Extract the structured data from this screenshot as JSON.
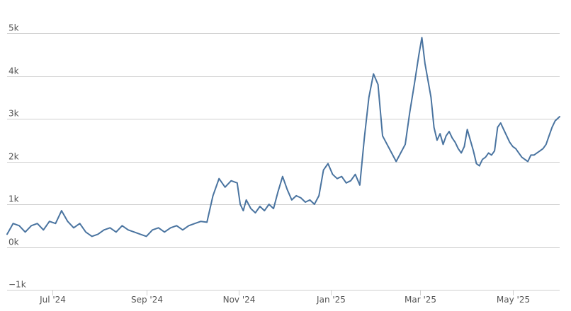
{
  "chart_data": {
    "type": "line",
    "title": "",
    "xlabel": "",
    "ylabel": "",
    "ylim": [
      -1000,
      5000
    ],
    "y_ticks": [
      {
        "value": 5000,
        "label": "5k"
      },
      {
        "value": 4000,
        "label": "4k"
      },
      {
        "value": 3000,
        "label": "3k"
      },
      {
        "value": 2000,
        "label": "2k"
      },
      {
        "value": 1000,
        "label": "1k"
      },
      {
        "value": 0,
        "label": "0k"
      },
      {
        "value": -1000,
        "label": "−1k"
      }
    ],
    "x_range": [
      "2024-06-01",
      "2025-06-01"
    ],
    "x_ticks": [
      {
        "date": "2024-07-01",
        "label": "Jul '24"
      },
      {
        "date": "2024-09-01",
        "label": "Sep '24"
      },
      {
        "date": "2024-11-01",
        "label": "Nov '24"
      },
      {
        "date": "2025-01-01",
        "label": "Jan '25"
      },
      {
        "date": "2025-03-01",
        "label": "Mar '25"
      },
      {
        "date": "2025-05-01",
        "label": "May '25"
      }
    ],
    "grid": true,
    "legend": "none",
    "series_color": "#4a74a0",
    "series": [
      {
        "x": [
          "2024-06-01",
          "2024-06-05",
          "2024-06-09",
          "2024-06-13",
          "2024-06-17",
          "2024-06-21",
          "2024-06-25",
          "2024-06-29",
          "2024-07-03",
          "2024-07-07",
          "2024-07-11",
          "2024-07-15",
          "2024-07-19",
          "2024-07-23",
          "2024-07-27",
          "2024-07-31",
          "2024-08-04",
          "2024-08-08",
          "2024-08-12",
          "2024-08-16",
          "2024-08-20",
          "2024-08-24",
          "2024-08-28",
          "2024-09-01",
          "2024-09-05",
          "2024-09-09",
          "2024-09-13",
          "2024-09-17",
          "2024-09-21",
          "2024-09-25",
          "2024-09-29",
          "2024-10-03",
          "2024-10-07",
          "2024-10-11",
          "2024-10-15",
          "2024-10-19",
          "2024-10-23",
          "2024-10-27",
          "2024-10-31",
          "2024-11-02",
          "2024-11-04",
          "2024-11-06",
          "2024-11-09",
          "2024-11-12",
          "2024-11-15",
          "2024-11-18",
          "2024-11-21",
          "2024-11-24",
          "2024-11-27",
          "2024-11-30",
          "2024-12-03",
          "2024-12-06",
          "2024-12-09",
          "2024-12-12",
          "2024-12-15",
          "2024-12-18",
          "2024-12-21",
          "2024-12-24",
          "2024-12-27",
          "2024-12-30",
          "2025-01-02",
          "2025-01-05",
          "2025-01-08",
          "2025-01-11",
          "2025-01-14",
          "2025-01-17",
          "2025-01-20",
          "2025-01-23",
          "2025-01-26",
          "2025-01-29",
          "2025-02-01",
          "2025-02-04",
          "2025-02-07",
          "2025-02-10",
          "2025-02-13",
          "2025-02-16",
          "2025-02-19",
          "2025-02-22",
          "2025-02-25",
          "2025-02-28",
          "2025-03-02",
          "2025-03-04",
          "2025-03-06",
          "2025-03-08",
          "2025-03-10",
          "2025-03-12",
          "2025-03-14",
          "2025-03-16",
          "2025-03-18",
          "2025-03-20",
          "2025-03-22",
          "2025-03-24",
          "2025-03-26",
          "2025-03-28",
          "2025-03-30",
          "2025-04-01",
          "2025-04-03",
          "2025-04-05",
          "2025-04-07",
          "2025-04-09",
          "2025-04-11",
          "2025-04-13",
          "2025-04-15",
          "2025-04-17",
          "2025-04-19",
          "2025-04-21",
          "2025-04-23",
          "2025-04-25",
          "2025-04-27",
          "2025-04-29",
          "2025-05-01",
          "2025-05-03",
          "2025-05-05",
          "2025-05-07",
          "2025-05-09",
          "2025-05-11",
          "2025-05-13",
          "2025-05-15",
          "2025-05-17",
          "2025-05-19",
          "2025-05-21",
          "2025-05-23",
          "2025-05-25",
          "2025-05-27",
          "2025-05-29",
          "2025-06-01"
        ],
        "values": [
          300,
          550,
          500,
          350,
          500,
          550,
          400,
          600,
          550,
          850,
          600,
          450,
          550,
          350,
          250,
          300,
          400,
          450,
          350,
          500,
          400,
          350,
          300,
          250,
          400,
          450,
          350,
          450,
          500,
          400,
          500,
          550,
          600,
          580,
          1200,
          1600,
          1400,
          1550,
          1500,
          1000,
          850,
          1100,
          900,
          800,
          950,
          850,
          1000,
          900,
          1300,
          1650,
          1350,
          1100,
          1200,
          1150,
          1050,
          1100,
          1000,
          1200,
          1800,
          1950,
          1700,
          1600,
          1650,
          1500,
          1550,
          1700,
          1450,
          2550,
          3500,
          4050,
          3800,
          2600,
          2400,
          2200,
          2000,
          2200,
          2400,
          3150,
          3800,
          4500,
          4900,
          4300,
          3900,
          3500,
          2800,
          2500,
          2650,
          2400,
          2600,
          2700,
          2550,
          2450,
          2300,
          2200,
          2350,
          2750,
          2500,
          2250,
          1950,
          1900,
          2050,
          2100,
          2200,
          2150,
          2250,
          2800,
          2900,
          2750,
          2600,
          2450,
          2350,
          2300,
          2200,
          2100,
          2050,
          2000,
          2150,
          2150,
          2200,
          2250,
          2300,
          2400,
          2600,
          2800,
          2950,
          3050
        ]
      }
    ]
  }
}
